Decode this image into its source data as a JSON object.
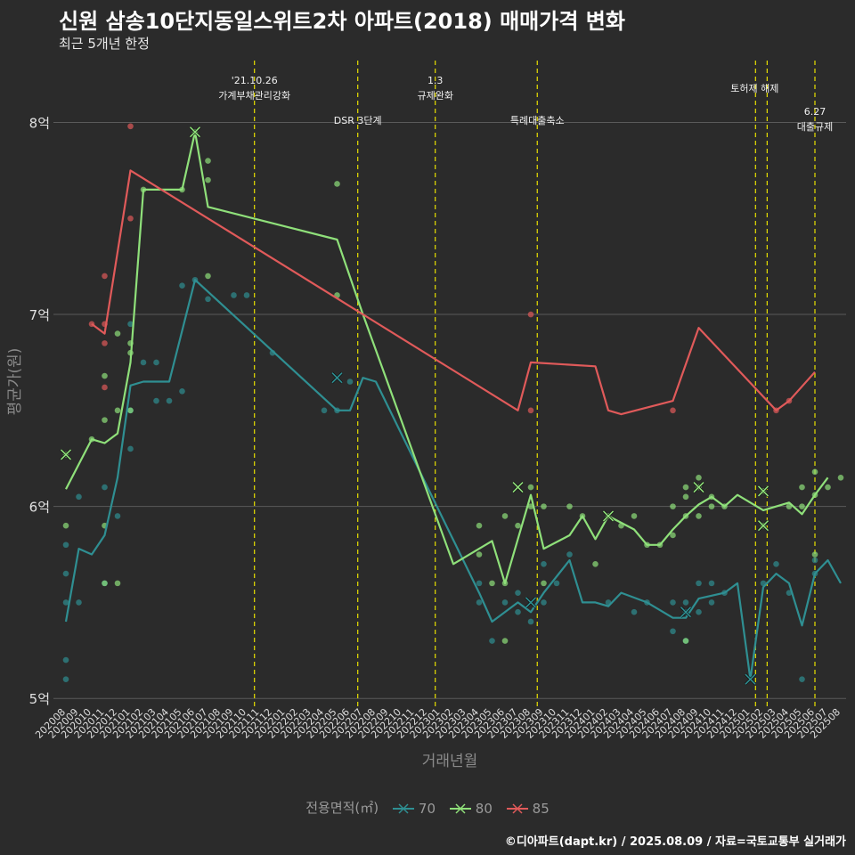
{
  "title": "신원 삼송10단지동일스위트2차 아파트(2018) 매매가격 변화",
  "subtitle": "최근 5개년 한정",
  "caption": "©디아파트(dapt.kr) / 2025.08.09 / 자료=국토교통부 실거래가",
  "legend": {
    "title": "전용면적(㎡)"
  },
  "colors": {
    "s70": "#2f8f92",
    "s80": "#8fe07a",
    "s85": "#e05a5a",
    "events": "#e8e000"
  },
  "chart_data": {
    "type": "line",
    "xlabel": "거래년월",
    "ylabel": "평균가(원)",
    "ylim": [
      4.95,
      8.35
    ],
    "yticks": [
      {
        "v": 5,
        "label": "5억"
      },
      {
        "v": 6,
        "label": "6억"
      },
      {
        "v": 7,
        "label": "7억"
      },
      {
        "v": 8,
        "label": "8억"
      }
    ],
    "categories": [
      "202008",
      "202009",
      "202010",
      "202011",
      "202012",
      "202101",
      "202102",
      "202103",
      "202104",
      "202105",
      "202106",
      "202107",
      "202108",
      "202109",
      "202110",
      "202111",
      "202112",
      "202201",
      "202202",
      "202203",
      "202204",
      "202205",
      "202206",
      "202207",
      "202208",
      "202209",
      "202210",
      "202211",
      "202212",
      "202301",
      "202302",
      "202303",
      "202304",
      "202305",
      "202306",
      "202307",
      "202308",
      "202309",
      "202310",
      "202311",
      "202312",
      "202401",
      "202402",
      "202403",
      "202404",
      "202405",
      "202406",
      "202407",
      "202408",
      "202409",
      "202410",
      "202411",
      "202412",
      "202501",
      "202502",
      "202503",
      "202504",
      "202505",
      "202506",
      "202507",
      "202508"
    ],
    "series": [
      {
        "name": "70",
        "color": "#2f8f92",
        "line": [
          [
            0,
            5.4
          ],
          [
            1,
            5.78
          ],
          [
            2,
            5.75
          ],
          [
            3,
            5.85
          ],
          [
            4,
            6.15
          ],
          [
            5,
            6.63
          ],
          [
            6,
            6.65
          ],
          [
            8,
            6.65
          ],
          [
            10,
            7.18
          ],
          [
            21,
            6.5
          ],
          [
            22,
            6.5
          ],
          [
            23,
            6.67
          ],
          [
            24,
            6.65
          ],
          [
            32,
            5.55
          ],
          [
            33,
            5.4
          ],
          [
            35,
            5.5
          ],
          [
            36,
            5.45
          ],
          [
            37,
            5.55
          ],
          [
            39,
            5.72
          ],
          [
            40,
            5.5
          ],
          [
            41,
            5.5
          ],
          [
            42,
            5.48
          ],
          [
            43,
            5.55
          ],
          [
            45,
            5.5
          ],
          [
            47,
            5.42
          ],
          [
            48,
            5.42
          ],
          [
            49,
            5.52
          ],
          [
            51,
            5.55
          ],
          [
            52,
            5.6
          ],
          [
            53,
            5.1
          ],
          [
            54,
            5.58
          ],
          [
            55,
            5.65
          ],
          [
            56,
            5.6
          ],
          [
            57,
            5.38
          ],
          [
            58,
            5.65
          ],
          [
            59,
            5.72
          ],
          [
            60,
            5.6
          ]
        ],
        "points": [
          [
            0,
            5.1
          ],
          [
            0,
            5.2
          ],
          [
            0,
            5.5
          ],
          [
            0,
            5.65
          ],
          [
            0,
            5.8
          ],
          [
            1,
            6.05
          ],
          [
            1,
            5.5
          ],
          [
            3,
            5.6
          ],
          [
            3,
            6.1
          ],
          [
            4,
            5.95
          ],
          [
            5,
            6.3
          ],
          [
            5,
            6.5
          ],
          [
            5,
            6.95
          ],
          [
            6,
            6.75
          ],
          [
            7,
            6.55
          ],
          [
            7,
            6.75
          ],
          [
            8,
            6.55
          ],
          [
            9,
            7.15
          ],
          [
            9,
            6.6
          ],
          [
            10,
            7.18
          ],
          [
            11,
            7.08
          ],
          [
            13,
            7.1
          ],
          [
            14,
            7.1
          ],
          [
            16,
            6.8
          ],
          [
            20,
            6.5
          ],
          [
            21,
            6.5
          ],
          [
            22,
            6.65
          ],
          [
            32,
            5.5
          ],
          [
            32,
            5.6
          ],
          [
            33,
            5.3
          ],
          [
            34,
            5.5
          ],
          [
            35,
            5.45
          ],
          [
            35,
            5.55
          ],
          [
            36,
            5.4
          ],
          [
            37,
            5.5
          ],
          [
            37,
            5.7
          ],
          [
            38,
            5.6
          ],
          [
            39,
            5.75
          ],
          [
            42,
            5.5
          ],
          [
            44,
            5.45
          ],
          [
            45,
            5.5
          ],
          [
            47,
            5.35
          ],
          [
            47,
            5.5
          ],
          [
            48,
            5.3
          ],
          [
            48,
            5.45
          ],
          [
            48,
            5.5
          ],
          [
            49,
            5.6
          ],
          [
            49,
            5.45
          ],
          [
            50,
            5.6
          ],
          [
            50,
            5.5
          ],
          [
            51,
            5.55
          ],
          [
            54,
            5.6
          ],
          [
            55,
            5.7
          ],
          [
            56,
            5.55
          ],
          [
            57,
            5.1
          ],
          [
            58,
            5.65
          ],
          [
            58,
            5.72
          ]
        ]
      },
      {
        "name": "80",
        "color": "#8fe07a",
        "line": [
          [
            0,
            6.09
          ],
          [
            2,
            6.35
          ],
          [
            3,
            6.33
          ],
          [
            4,
            6.38
          ],
          [
            5,
            6.75
          ],
          [
            6,
            7.65
          ],
          [
            9,
            7.65
          ],
          [
            10,
            7.95
          ],
          [
            11,
            7.56
          ],
          [
            21,
            7.39
          ],
          [
            23,
            7.0
          ],
          [
            30,
            5.7
          ],
          [
            32,
            5.78
          ],
          [
            33,
            5.82
          ],
          [
            34,
            5.6
          ],
          [
            36,
            6.06
          ],
          [
            37,
            5.78
          ],
          [
            39,
            5.85
          ],
          [
            40,
            5.95
          ],
          [
            41,
            5.83
          ],
          [
            42,
            5.95
          ],
          [
            44,
            5.88
          ],
          [
            45,
            5.8
          ],
          [
            46,
            5.8
          ],
          [
            47,
            5.88
          ],
          [
            48,
            5.95
          ],
          [
            49,
            6.01
          ],
          [
            50,
            6.05
          ],
          [
            51,
            6.0
          ],
          [
            52,
            6.06
          ],
          [
            54,
            5.98
          ],
          [
            56,
            6.02
          ],
          [
            57,
            5.96
          ],
          [
            58,
            6.06
          ],
          [
            59,
            6.15
          ]
        ],
        "points": [
          [
            0,
            5.9
          ],
          [
            0,
            6.27
          ],
          [
            2,
            6.35
          ],
          [
            3,
            6.45
          ],
          [
            3,
            6.68
          ],
          [
            3,
            5.9
          ],
          [
            3,
            5.6
          ],
          [
            4,
            6.5
          ],
          [
            4,
            6.9
          ],
          [
            4,
            5.6
          ],
          [
            5,
            6.8
          ],
          [
            5,
            6.85
          ],
          [
            5,
            6.5
          ],
          [
            6,
            7.65
          ],
          [
            9,
            7.65
          ],
          [
            10,
            7.95
          ],
          [
            11,
            7.8
          ],
          [
            11,
            7.7
          ],
          [
            11,
            7.2
          ],
          [
            21,
            7.68
          ],
          [
            21,
            7.1
          ],
          [
            32,
            5.9
          ],
          [
            32,
            5.75
          ],
          [
            33,
            5.6
          ],
          [
            34,
            5.6
          ],
          [
            34,
            5.95
          ],
          [
            34,
            5.3
          ],
          [
            35,
            5.9
          ],
          [
            36,
            6.1
          ],
          [
            36,
            6.0
          ],
          [
            37,
            6.0
          ],
          [
            37,
            5.6
          ],
          [
            39,
            6.0
          ],
          [
            40,
            5.95
          ],
          [
            41,
            5.7
          ],
          [
            42,
            5.95
          ],
          [
            43,
            5.9
          ],
          [
            44,
            5.95
          ],
          [
            45,
            5.8
          ],
          [
            46,
            5.8
          ],
          [
            47,
            5.85
          ],
          [
            47,
            6.0
          ],
          [
            48,
            6.1
          ],
          [
            48,
            6.05
          ],
          [
            48,
            5.95
          ],
          [
            48,
            5.3
          ],
          [
            49,
            6.1
          ],
          [
            49,
            6.15
          ],
          [
            49,
            5.95
          ],
          [
            50,
            6.05
          ],
          [
            50,
            6.0
          ],
          [
            51,
            6.0
          ],
          [
            54,
            6.08
          ],
          [
            54,
            5.9
          ],
          [
            56,
            6.0
          ],
          [
            57,
            6.1
          ],
          [
            57,
            6.0
          ],
          [
            58,
            6.18
          ],
          [
            58,
            6.06
          ],
          [
            58,
            5.75
          ],
          [
            59,
            6.1
          ],
          [
            60,
            6.15
          ]
        ]
      },
      {
        "name": "85",
        "color": "#e05a5a",
        "line": [
          [
            2,
            6.95
          ],
          [
            3,
            6.9
          ],
          [
            5,
            7.75
          ],
          [
            23,
            7.0
          ],
          [
            35,
            6.5
          ],
          [
            36,
            6.75
          ],
          [
            41,
            6.73
          ],
          [
            42,
            6.5
          ],
          [
            43,
            6.48
          ],
          [
            47,
            6.55
          ],
          [
            49,
            6.93
          ],
          [
            55,
            6.5
          ],
          [
            56,
            6.55
          ],
          [
            58,
            6.7
          ]
        ],
        "points": [
          [
            2,
            6.95
          ],
          [
            3,
            6.95
          ],
          [
            3,
            6.85
          ],
          [
            3,
            6.62
          ],
          [
            3,
            7.2
          ],
          [
            5,
            7.98
          ],
          [
            5,
            7.5
          ],
          [
            36,
            7.0
          ],
          [
            36,
            6.5
          ],
          [
            47,
            6.5
          ],
          [
            55,
            6.5
          ],
          [
            56,
            6.55
          ]
        ]
      }
    ],
    "cross_markers": [
      {
        "series": "80",
        "x": 0,
        "y": 6.27
      },
      {
        "series": "80",
        "x": 10,
        "y": 7.95
      },
      {
        "series": "70",
        "x": 21,
        "y": 6.67
      },
      {
        "series": "80",
        "x": 35,
        "y": 6.1
      },
      {
        "series": "70",
        "x": 36,
        "y": 5.5
      },
      {
        "series": "80",
        "x": 42,
        "y": 5.95
      },
      {
        "series": "70",
        "x": 48,
        "y": 5.45
      },
      {
        "series": "80",
        "x": 49,
        "y": 6.1
      },
      {
        "series": "70",
        "x": 53,
        "y": 5.1
      },
      {
        "series": "80",
        "x": 54,
        "y": 6.08
      },
      {
        "series": "80",
        "x": 54,
        "y": 5.9
      }
    ],
    "events": [
      {
        "x": 14.6,
        "label1": "'21.10.26",
        "label2": "가계부채관리강화"
      },
      {
        "x": 22.6,
        "label1": "DSR 3단계",
        "label2": ""
      },
      {
        "x": 28.6,
        "label1": "1.3",
        "label2": "규제완화"
      },
      {
        "x": 36.5,
        "label1": "특례대출축소",
        "label2": ""
      },
      {
        "x": 53.4,
        "label1": "",
        "label2": ""
      },
      {
        "x": 54.3,
        "label1": "토허제 해제",
        "label2": ""
      },
      {
        "x": 58.0,
        "label1": "6.27",
        "label2": "대출규제"
      }
    ]
  }
}
